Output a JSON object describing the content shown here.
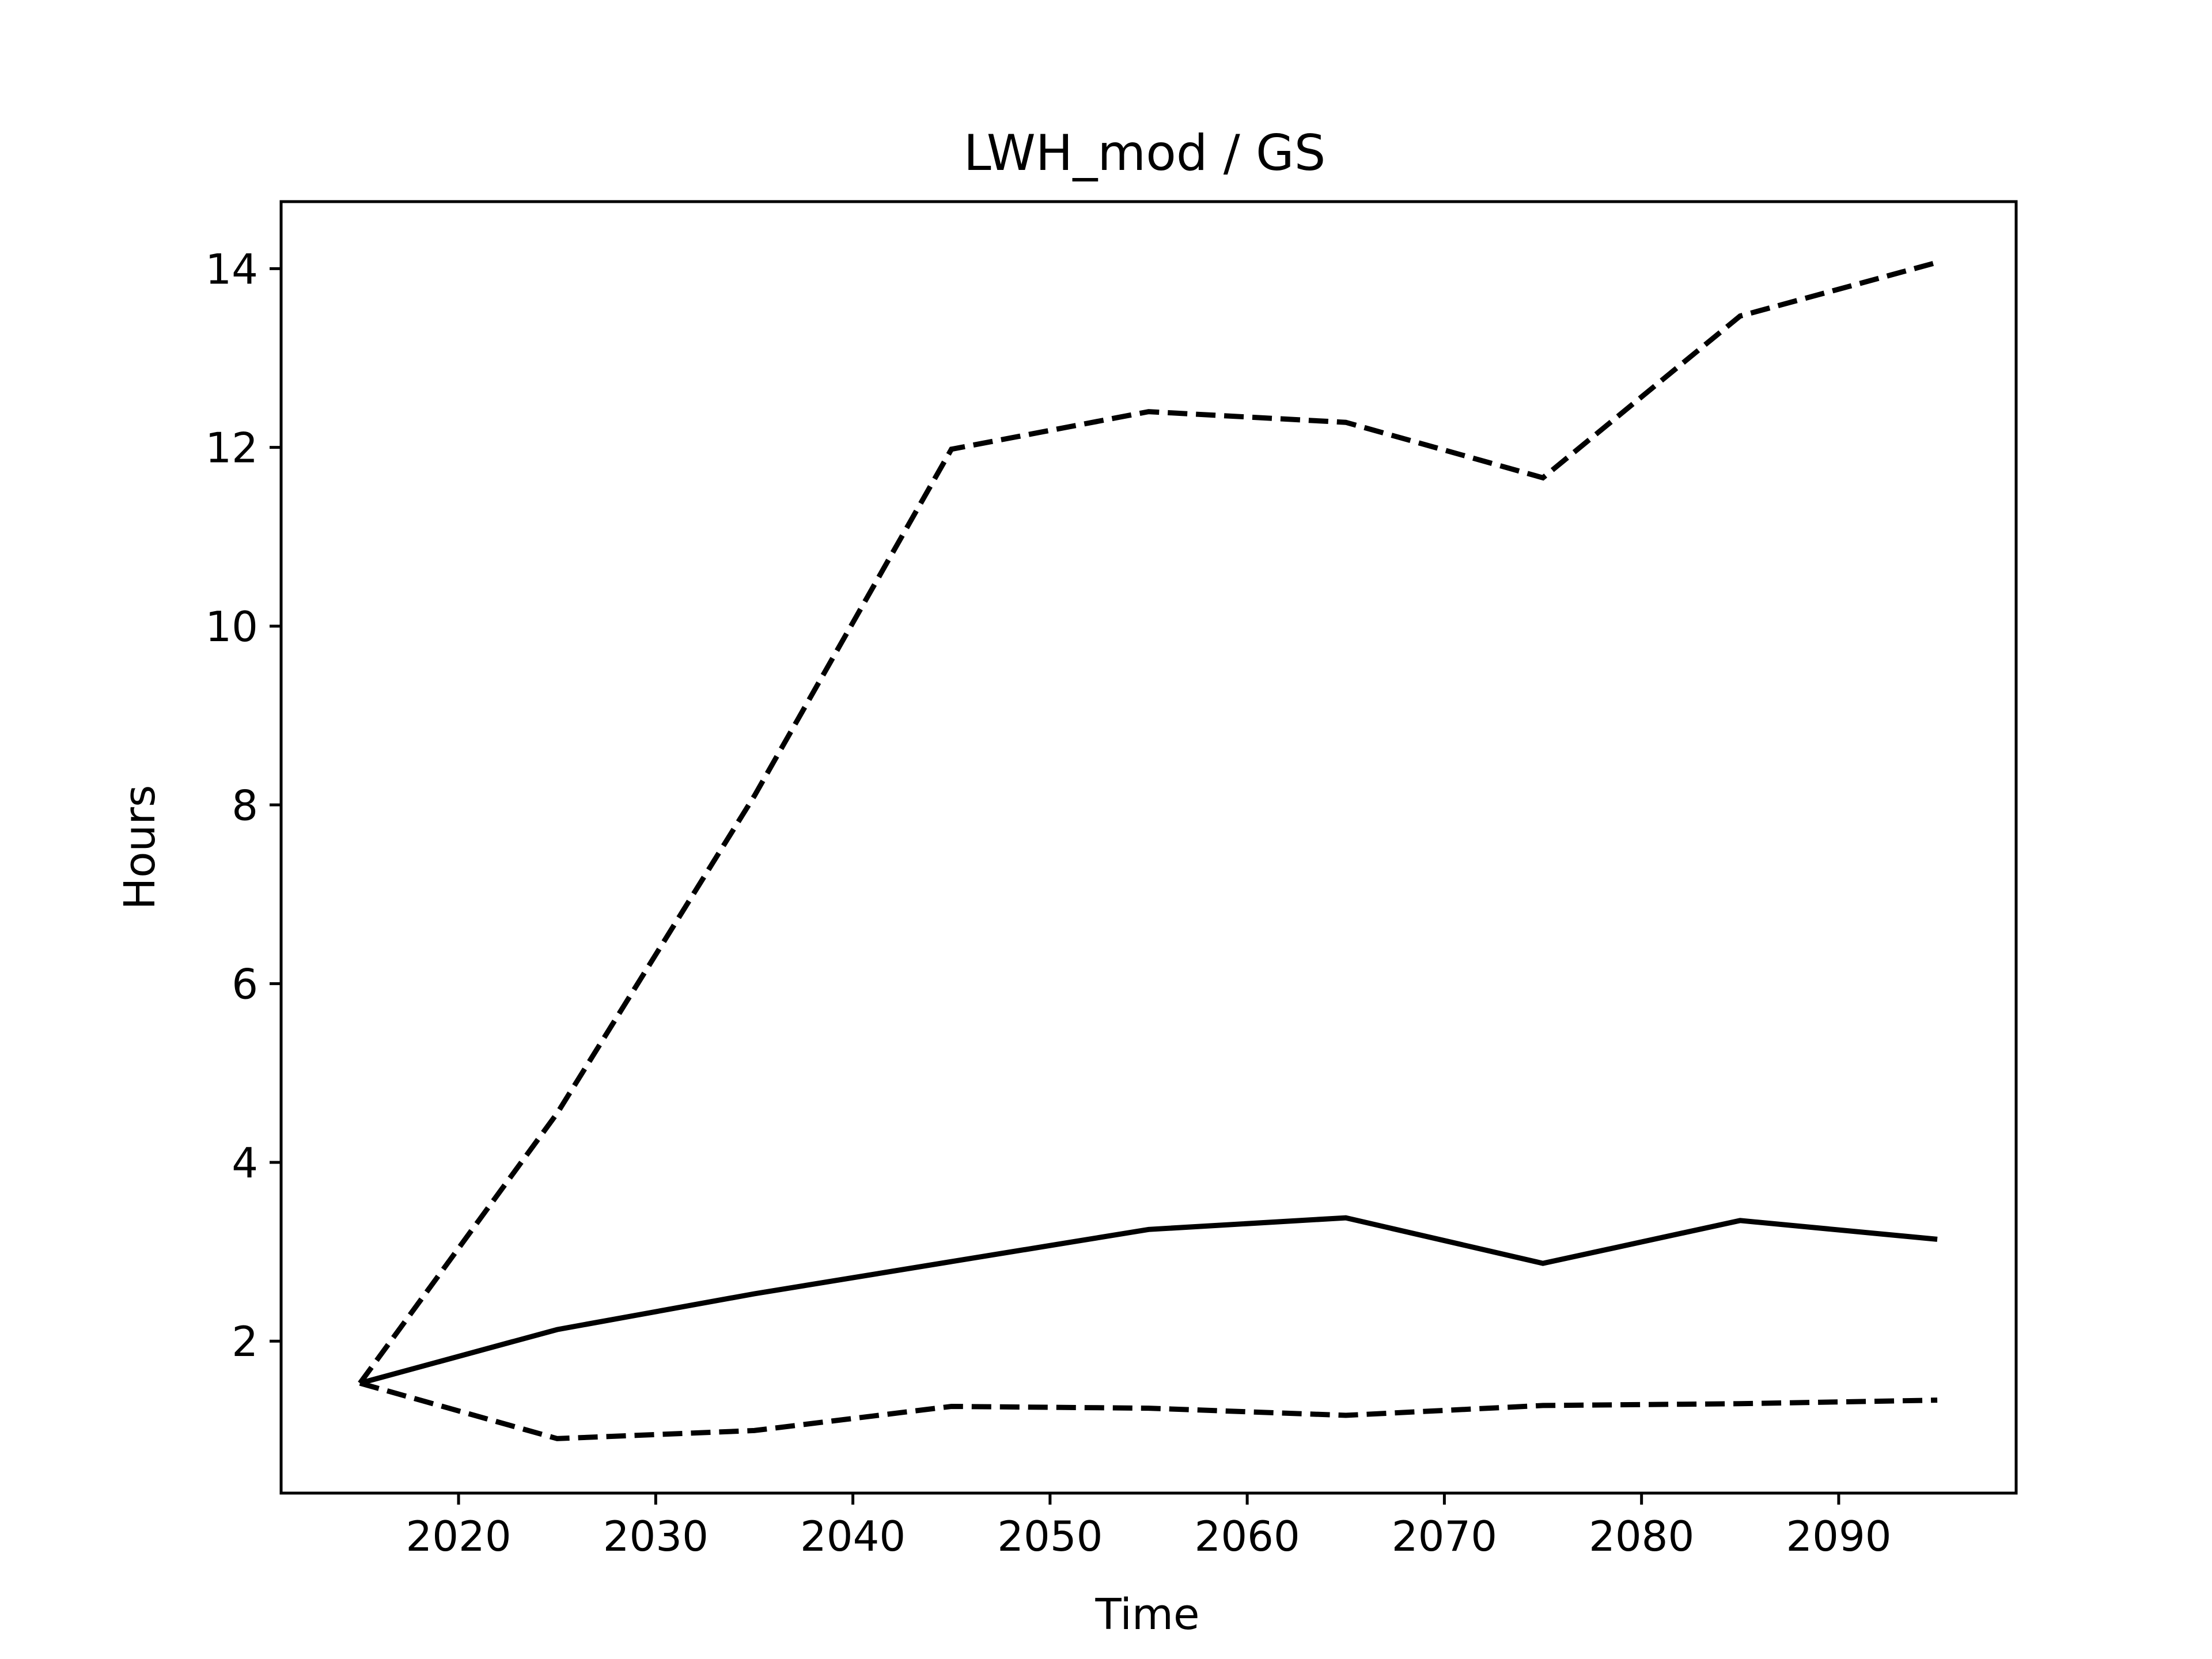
{
  "chart_data": {
    "type": "line",
    "title": "LWH_mod / GS",
    "xlabel": "Time",
    "ylabel": "Hours",
    "xlim": [
      2011,
      2099
    ],
    "ylim": [
      0.3,
      14.75
    ],
    "xticks": [
      2020,
      2030,
      2040,
      2050,
      2060,
      2070,
      2080,
      2090
    ],
    "yticks": [
      2,
      4,
      6,
      8,
      10,
      12,
      14
    ],
    "grid": false,
    "legend": "none",
    "x": [
      2015,
      2025,
      2035,
      2045,
      2055,
      2065,
      2075,
      2085,
      2095
    ],
    "series": [
      {
        "style": "solid",
        "color": "#000000",
        "values": [
          1.53,
          2.13,
          2.53,
          2.89,
          3.25,
          3.38,
          2.87,
          3.35,
          3.14
        ]
      },
      {
        "style": "dashed",
        "color": "#000000",
        "values": [
          1.53,
          4.55,
          8.1,
          11.98,
          12.4,
          12.28,
          11.66,
          13.47,
          14.07
        ]
      },
      {
        "style": "dashed",
        "color": "#000000",
        "values": [
          1.53,
          0.91,
          1.0,
          1.27,
          1.25,
          1.17,
          1.28,
          1.3,
          1.34
        ]
      }
    ]
  }
}
